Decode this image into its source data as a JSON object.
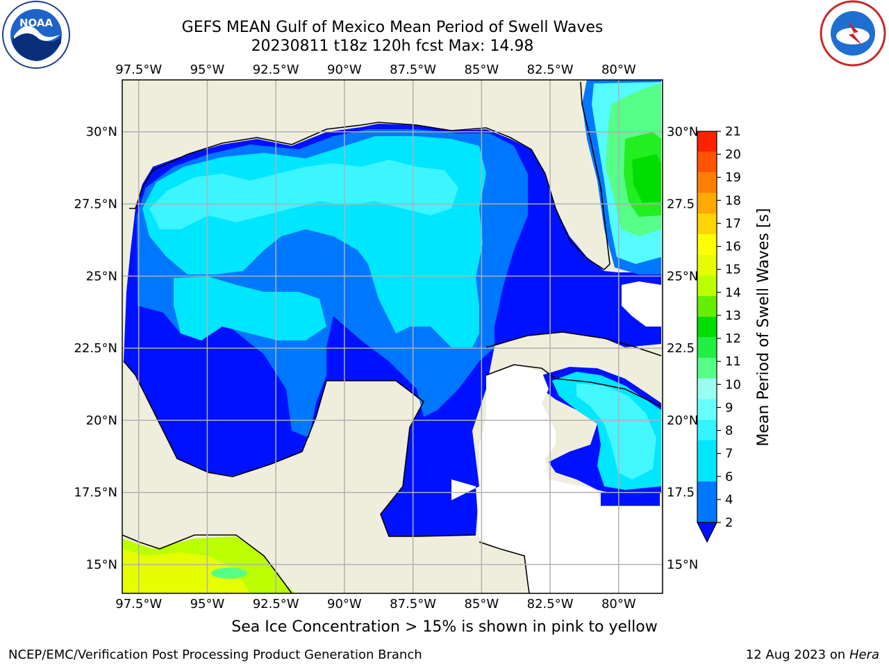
{
  "title": {
    "line1": "GEFS MEAN Gulf of Mexico Mean Period of Swell Waves",
    "line2": "20230811 t18z 120h fcst   Max: 14.98"
  },
  "footer_note": "Sea Ice Concentration > 15% is shown in pink to yellow",
  "credit": {
    "left": "NCEP/EMC/Verification Post Processing Product Generation Branch",
    "date": "12 Aug 2023 on",
    "machine": "Hera"
  },
  "logos": {
    "left": "NOAA",
    "right": "NATIONAL WEATHER SERVICE"
  },
  "chart_data": {
    "type": "heatmap",
    "title": "GEFS MEAN Gulf of Mexico Mean Period of Swell Waves",
    "subtitle": "20230811 t18z 120h fcst   Max: 14.98",
    "max": 14.98,
    "lon_labels": [
      "97.5°W",
      "95°W",
      "92.5°W",
      "90°W",
      "87.5°W",
      "85°W",
      "82.5°W",
      "80°W"
    ],
    "lon_values": [
      -97.5,
      -95,
      -92.5,
      -90,
      -87.5,
      -85,
      -82.5,
      -80
    ],
    "lat_labels": [
      "30°N",
      "27.5°N",
      "25°N",
      "22.5°N",
      "20°N",
      "17.5°N",
      "15°N"
    ],
    "lat_right_labels": [
      "30°N",
      "27.5",
      "25°N",
      "22.5",
      "20°N",
      "17.5",
      "15°N"
    ],
    "lat_values": [
      30,
      27.5,
      25,
      22.5,
      20,
      17.5,
      15
    ],
    "lon_range": [
      -98.1,
      -78.4
    ],
    "lat_range": [
      14.0,
      31.8
    ],
    "grid": true,
    "colorbar": {
      "label": "Mean Period of Swell Waves [s]",
      "ticks": [
        "2",
        "4",
        "6",
        "7",
        "8",
        "9",
        "10",
        "11",
        "12",
        "13",
        "14",
        "15",
        "16",
        "17",
        "18",
        "19",
        "20",
        "21"
      ],
      "bands": [
        {
          "from": 2,
          "to": 4,
          "color": "#0077ff"
        },
        {
          "from": 4,
          "to": 6,
          "color": "#00e6ff"
        },
        {
          "from": 6,
          "to": 7,
          "color": "#33f5ff"
        },
        {
          "from": 7,
          "to": 8,
          "color": "#66ffff"
        },
        {
          "from": 8,
          "to": 9,
          "color": "#99fff0"
        },
        {
          "from": 9,
          "to": 10,
          "color": "#55ff88"
        },
        {
          "from": 10,
          "to": 11,
          "color": "#22ee44"
        },
        {
          "from": 11,
          "to": 12,
          "color": "#00dd00"
        },
        {
          "from": 12,
          "to": 13,
          "color": "#66ee00"
        },
        {
          "from": 13,
          "to": 14,
          "color": "#bbff00"
        },
        {
          "from": 14,
          "to": 15,
          "color": "#e6ff00"
        },
        {
          "from": 15,
          "to": 16,
          "color": "#ffff00"
        },
        {
          "from": 16,
          "to": 17,
          "color": "#ffd400"
        },
        {
          "from": 17,
          "to": 18,
          "color": "#ffaa00"
        },
        {
          "from": 18,
          "to": 19,
          "color": "#ff8000"
        },
        {
          "from": 19,
          "to": 20,
          "color": "#ff5500"
        },
        {
          "from": 20,
          "to": 21,
          "color": "#ff2200"
        }
      ],
      "under_color": "#0011ff"
    },
    "colors": {
      "land": "#efeedd",
      "below_2": "#0011ff",
      "band_2_4": "#0077ff",
      "band_4_6": "#00e6ff",
      "band_6_8": "#55fbff",
      "band_8_10": "#55ff88",
      "band_10_12": "#22ee22",
      "pacific": "#ccff00"
    }
  }
}
